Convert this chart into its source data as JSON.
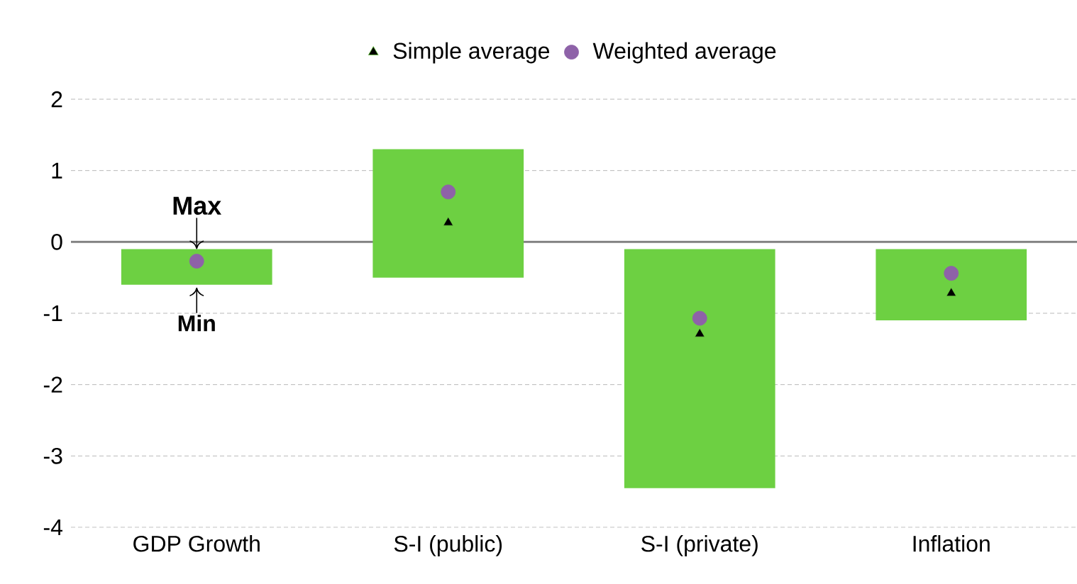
{
  "chart_data": {
    "type": "bar",
    "categories": [
      "GDP Growth",
      "S-I (public)",
      "S-I (private)",
      "Inflation"
    ],
    "series": [
      {
        "color": "#6dd042",
        "base": [
          -0.6,
          -0.5,
          -3.45,
          -1.1
        ],
        "values": [
          0.5,
          1.8,
          3.35,
          1.0
        ]
      },
      {
        "type": "scatter",
        "name": "Simple average",
        "color": "#000000",
        "marker": "triangle",
        "values": [
          null,
          0.27,
          -1.29,
          -0.72
        ]
      },
      {
        "type": "scatter",
        "name": "Weighted average",
        "color": "#8e62a8",
        "marker": "circle",
        "values": [
          -0.27,
          0.7,
          -1.07,
          -0.44
        ]
      }
    ],
    "ylim": [
      -4,
      2
    ],
    "yticks": [
      -4,
      -3,
      -2,
      -1,
      0,
      1,
      2
    ],
    "grid": "y",
    "legend": "top",
    "ref_lines": [
      {
        "axis": "y",
        "value": 0,
        "color": "#808080"
      }
    ],
    "annotations": [
      {
        "text": "Max",
        "x": "GDP Growth",
        "y": -0.1
      },
      {
        "text": "Min",
        "x": "GDP Growth",
        "y": -0.6
      }
    ]
  }
}
